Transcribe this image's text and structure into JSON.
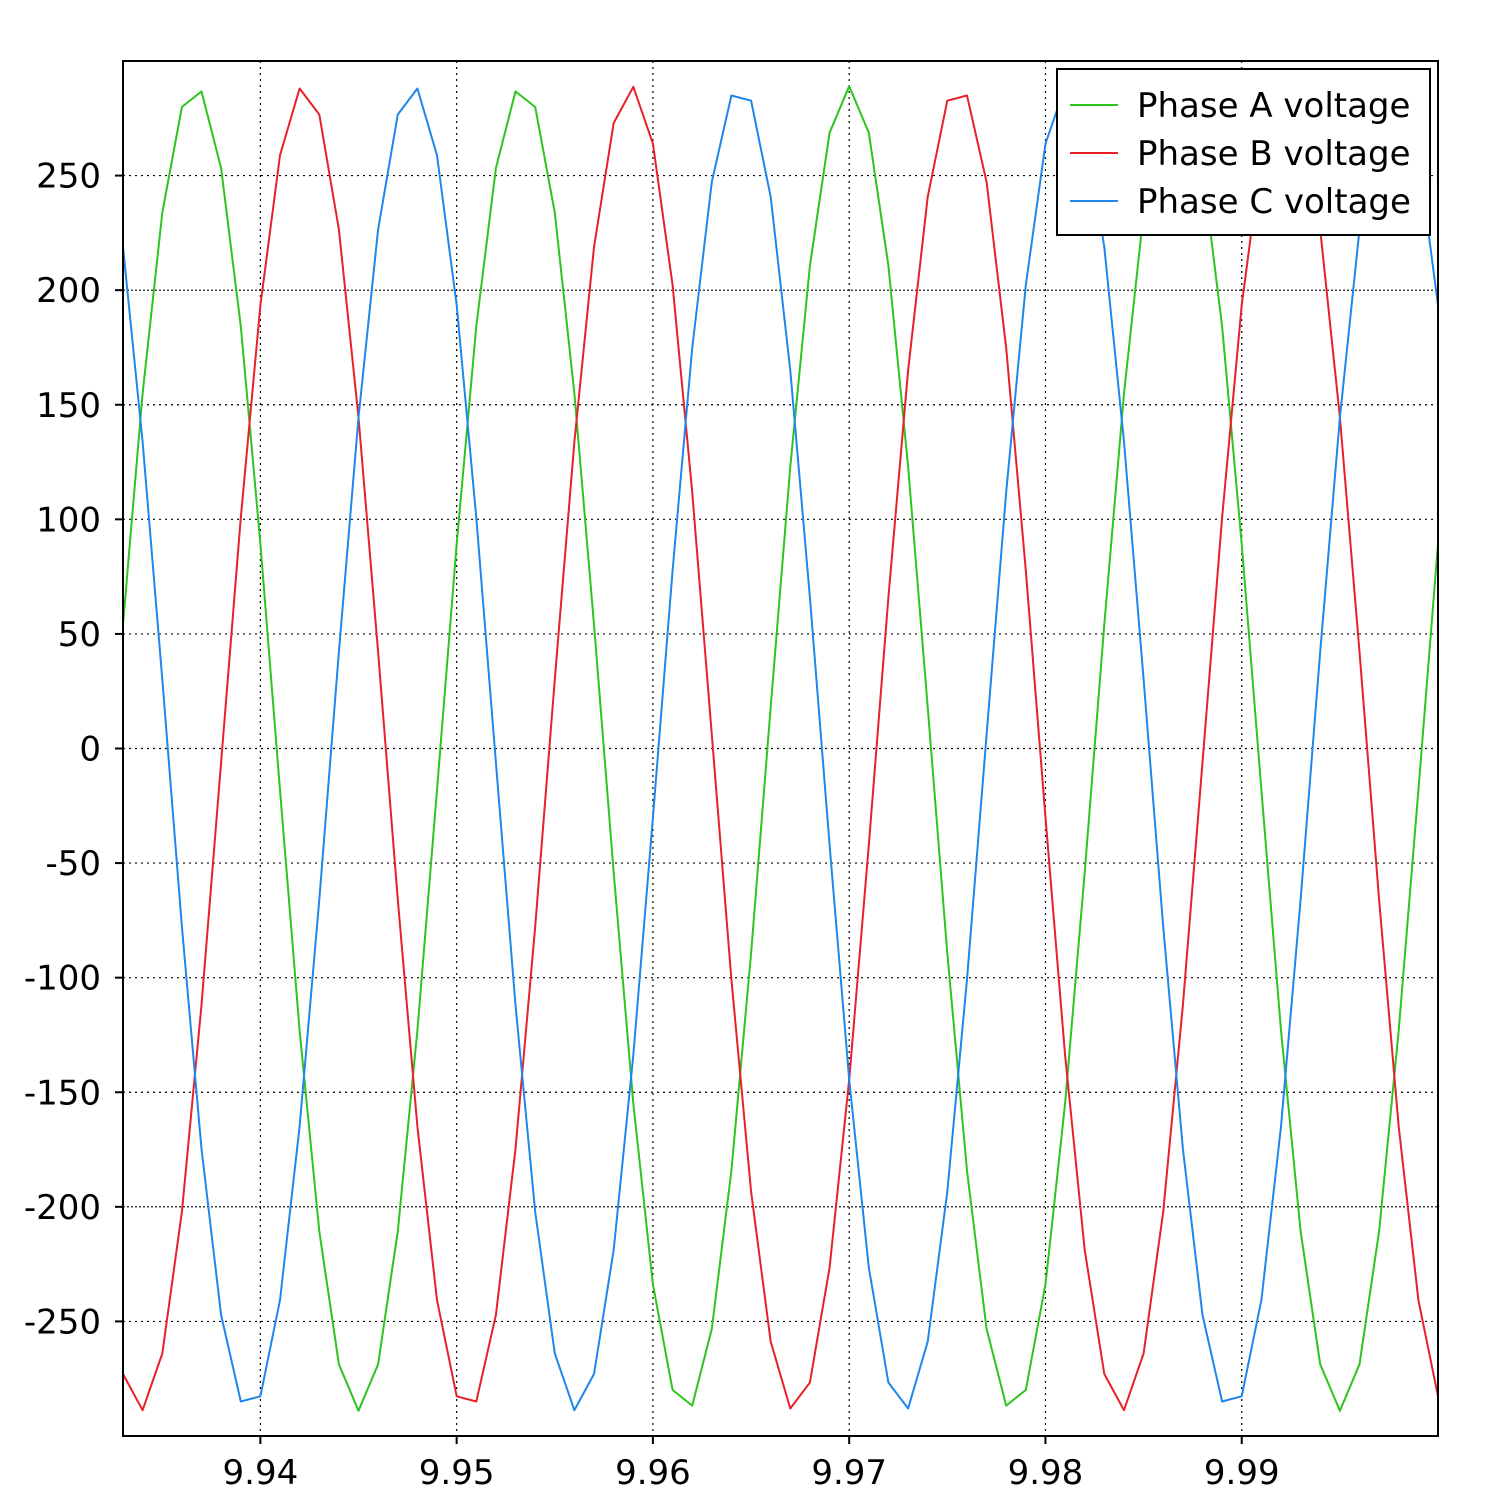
{
  "chart_data": {
    "type": "line",
    "title": "",
    "xlabel": "",
    "ylabel": "",
    "xlim": [
      9.933,
      10.0
    ],
    "ylim": [
      -300,
      300
    ],
    "xticks": [
      "9.94",
      "9.95",
      "9.96",
      "9.97",
      "9.98",
      "9.99"
    ],
    "yticks": [
      "250",
      "200",
      "150",
      "100",
      "50",
      "0",
      "-50",
      "-100",
      "-150",
      "-200",
      "-250"
    ],
    "xtick_values": [
      9.94,
      9.95,
      9.96,
      9.97,
      9.98,
      9.99
    ],
    "ytick_values": [
      250,
      200,
      150,
      100,
      50,
      0,
      -50,
      -100,
      -150,
      -200,
      -250
    ],
    "grid": true,
    "legend_position": "top-right",
    "amplitude": 289,
    "frequency_hz": 60,
    "series": [
      {
        "name": "Phase A voltage",
        "color": "#2ec41f",
        "phase_deg": 0
      },
      {
        "name": "Phase B voltage",
        "color": "#e8202a",
        "phase_deg": -120
      },
      {
        "name": "Phase C voltage",
        "color": "#1e86ec",
        "phase_deg": 120
      }
    ]
  }
}
